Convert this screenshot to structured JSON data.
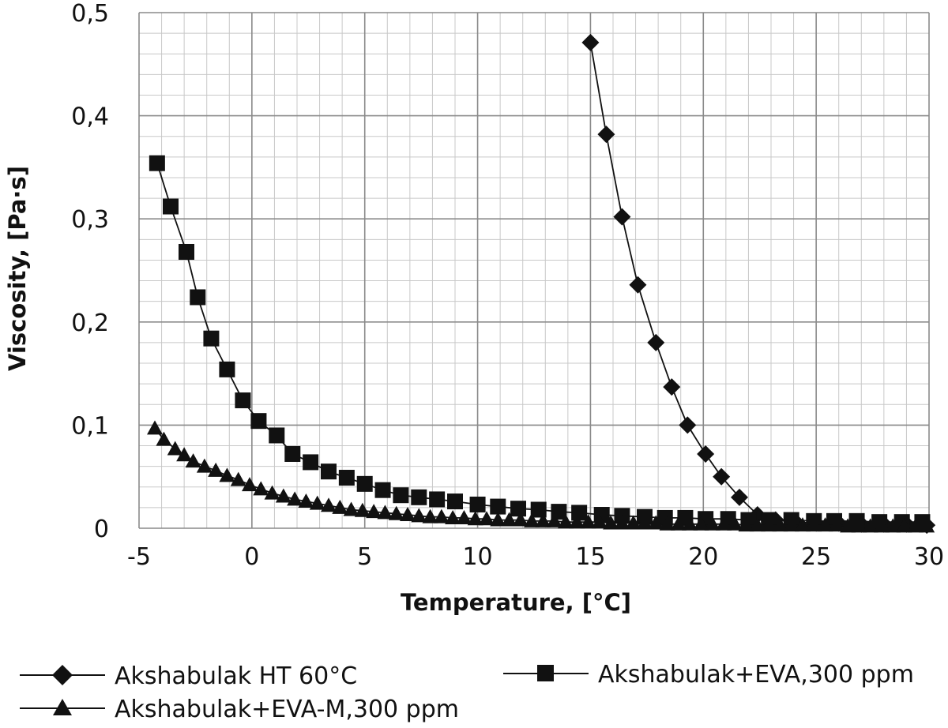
{
  "chart_data": {
    "type": "line",
    "title": "",
    "xlabel": "Temperature, [°C]",
    "ylabel": "Viscosity, [Pa·s]",
    "xlim": [
      -5,
      30
    ],
    "ylim": [
      0,
      0.5
    ],
    "x_major_ticks": [
      -5,
      0,
      5,
      10,
      15,
      20,
      25,
      30
    ],
    "x_tick_labels": [
      "-5",
      "0",
      "5",
      "10",
      "15",
      "20",
      "25",
      "30"
    ],
    "y_major_ticks": [
      0,
      0.1,
      0.2,
      0.3,
      0.4,
      0.5
    ],
    "y_tick_labels": [
      "0",
      "0,1",
      "0,2",
      "0,3",
      "0,4",
      "0,5"
    ],
    "x_minor_step": 1,
    "y_minor_step": 0.02,
    "grid": true,
    "legend_position": "bottom",
    "series": [
      {
        "name": "Akshabulak HT 60°C",
        "marker": "diamond",
        "points": [
          [
            15.0,
            0.471
          ],
          [
            15.7,
            0.382
          ],
          [
            16.4,
            0.302
          ],
          [
            17.1,
            0.236
          ],
          [
            17.9,
            0.18
          ],
          [
            18.6,
            0.137
          ],
          [
            19.3,
            0.1
          ],
          [
            20.1,
            0.072
          ],
          [
            20.8,
            0.05
          ],
          [
            21.6,
            0.03
          ],
          [
            22.4,
            0.013
          ],
          [
            23.2,
            0.008
          ],
          [
            24.1,
            0.006
          ],
          [
            25.0,
            0.005
          ],
          [
            26.0,
            0.005
          ],
          [
            27.0,
            0.004
          ],
          [
            28.0,
            0.004
          ],
          [
            29.0,
            0.004
          ],
          [
            29.9,
            0.003
          ]
        ]
      },
      {
        "name": "Akshabulak+EVA,300 ppm",
        "marker": "square",
        "points": [
          [
            -4.2,
            0.354
          ],
          [
            -3.6,
            0.312
          ],
          [
            -2.9,
            0.268
          ],
          [
            -2.4,
            0.224
          ],
          [
            -1.8,
            0.184
          ],
          [
            -1.1,
            0.154
          ],
          [
            -0.4,
            0.124
          ],
          [
            0.3,
            0.104
          ],
          [
            1.1,
            0.09
          ],
          [
            1.8,
            0.072
          ],
          [
            2.6,
            0.064
          ],
          [
            3.4,
            0.055
          ],
          [
            4.2,
            0.049
          ],
          [
            5.0,
            0.043
          ],
          [
            5.8,
            0.037
          ],
          [
            6.6,
            0.032
          ],
          [
            7.4,
            0.03
          ],
          [
            8.2,
            0.028
          ],
          [
            9.0,
            0.026
          ],
          [
            10.0,
            0.023
          ],
          [
            10.9,
            0.021
          ],
          [
            11.8,
            0.019
          ],
          [
            12.7,
            0.018
          ],
          [
            13.6,
            0.016
          ],
          [
            14.5,
            0.015
          ],
          [
            15.5,
            0.013
          ],
          [
            16.4,
            0.012
          ],
          [
            17.4,
            0.011
          ],
          [
            18.3,
            0.01
          ],
          [
            19.2,
            0.01
          ],
          [
            20.1,
            0.009
          ],
          [
            21.1,
            0.009
          ],
          [
            22.0,
            0.008
          ],
          [
            22.9,
            0.008
          ],
          [
            23.9,
            0.008
          ],
          [
            24.9,
            0.007
          ],
          [
            25.8,
            0.007
          ],
          [
            26.8,
            0.007
          ],
          [
            27.8,
            0.006
          ],
          [
            28.8,
            0.006
          ],
          [
            29.7,
            0.006
          ]
        ]
      },
      {
        "name": "Akshabulak+EVA-M,300 ppm",
        "marker": "triangle",
        "points": [
          [
            -4.3,
            0.097
          ],
          [
            -3.9,
            0.086
          ],
          [
            -3.4,
            0.077
          ],
          [
            -3.0,
            0.071
          ],
          [
            -2.6,
            0.065
          ],
          [
            -2.1,
            0.06
          ],
          [
            -1.6,
            0.056
          ],
          [
            -1.1,
            0.051
          ],
          [
            -0.6,
            0.047
          ],
          [
            -0.1,
            0.042
          ],
          [
            0.4,
            0.038
          ],
          [
            0.9,
            0.034
          ],
          [
            1.4,
            0.031
          ],
          [
            1.9,
            0.028
          ],
          [
            2.4,
            0.026
          ],
          [
            2.9,
            0.024
          ],
          [
            3.4,
            0.022
          ],
          [
            3.9,
            0.02
          ],
          [
            4.4,
            0.018
          ],
          [
            4.9,
            0.017
          ],
          [
            5.4,
            0.016
          ],
          [
            5.9,
            0.015
          ],
          [
            6.4,
            0.014
          ],
          [
            6.9,
            0.013
          ],
          [
            7.4,
            0.012
          ],
          [
            7.9,
            0.011
          ],
          [
            8.4,
            0.011
          ],
          [
            8.9,
            0.01
          ],
          [
            9.4,
            0.01
          ],
          [
            9.9,
            0.009
          ],
          [
            10.4,
            0.009
          ],
          [
            10.9,
            0.008
          ],
          [
            11.4,
            0.008
          ],
          [
            11.9,
            0.008
          ],
          [
            12.4,
            0.007
          ],
          [
            12.9,
            0.007
          ],
          [
            13.4,
            0.007
          ],
          [
            13.9,
            0.006
          ],
          [
            14.4,
            0.006
          ],
          [
            14.9,
            0.006
          ],
          [
            15.4,
            0.006
          ],
          [
            15.9,
            0.005
          ],
          [
            16.4,
            0.005
          ],
          [
            16.9,
            0.005
          ],
          [
            17.4,
            0.005
          ],
          [
            17.9,
            0.005
          ],
          [
            18.4,
            0.004
          ],
          [
            18.9,
            0.004
          ],
          [
            19.4,
            0.004
          ],
          [
            19.9,
            0.004
          ],
          [
            20.4,
            0.004
          ],
          [
            20.9,
            0.004
          ],
          [
            21.4,
            0.004
          ],
          [
            21.9,
            0.003
          ],
          [
            22.4,
            0.003
          ],
          [
            22.9,
            0.003
          ],
          [
            23.4,
            0.003
          ],
          [
            23.9,
            0.003
          ],
          [
            24.4,
            0.003
          ],
          [
            24.9,
            0.003
          ],
          [
            25.4,
            0.003
          ],
          [
            25.9,
            0.003
          ],
          [
            26.4,
            0.002
          ],
          [
            26.9,
            0.002
          ],
          [
            27.4,
            0.002
          ],
          [
            27.9,
            0.002
          ],
          [
            28.4,
            0.002
          ],
          [
            28.9,
            0.002
          ],
          [
            29.4,
            0.002
          ],
          [
            29.9,
            0.002
          ]
        ]
      }
    ]
  },
  "colors": {
    "major_grid": "#8a8a8a",
    "minor_grid": "#c8c8c8",
    "series_line": "#111111",
    "marker_fill": "#111111"
  }
}
